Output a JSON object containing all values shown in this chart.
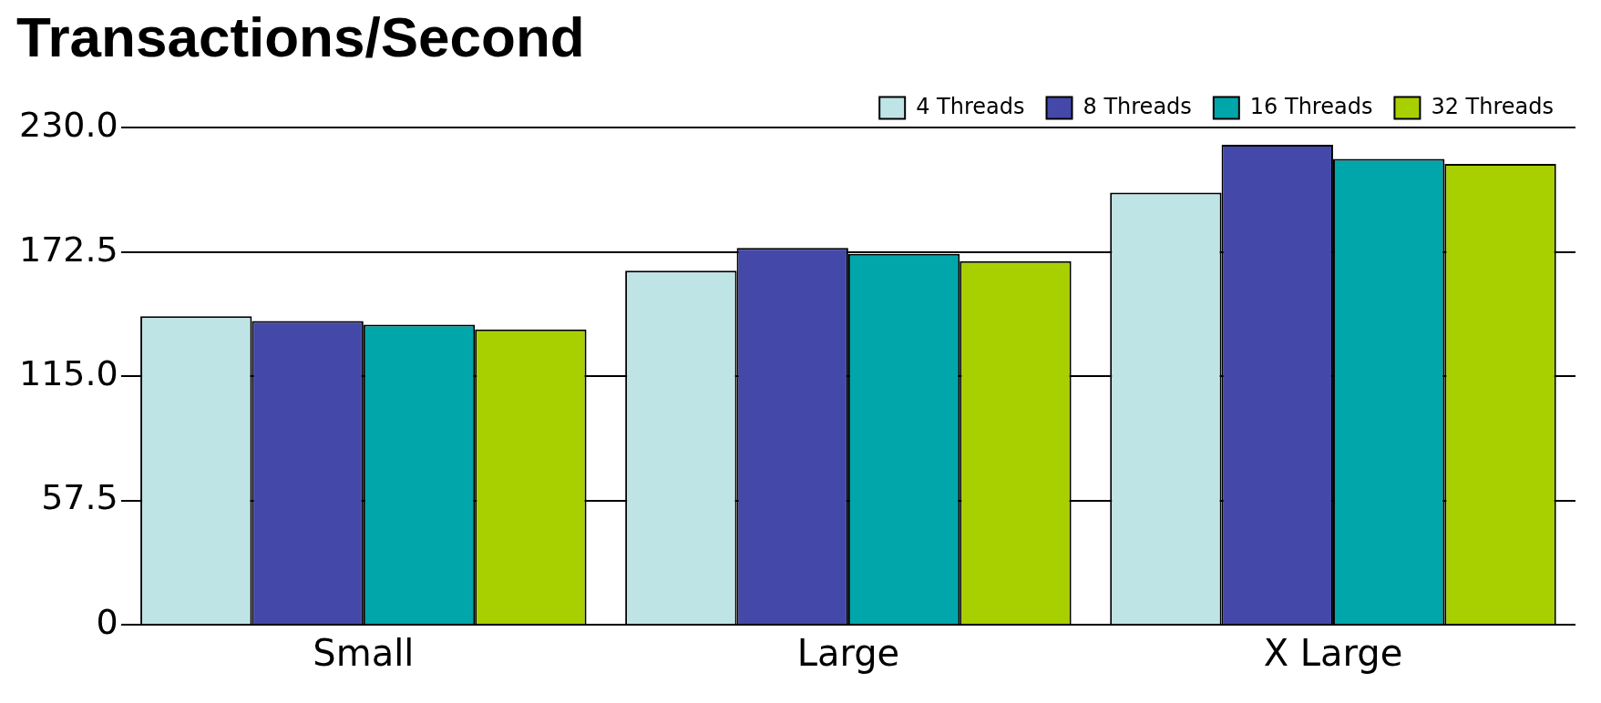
{
  "chart_data": {
    "type": "bar",
    "title": "Transactions/Second",
    "categories": [
      "Small",
      "Large",
      "X Large"
    ],
    "series": [
      {
        "name": "4 Threads",
        "color": "#bfe4e6",
        "values": [
          142.8,
          163.9,
          200.0
        ]
      },
      {
        "name": "8 Threads",
        "color": "#4448a8",
        "values": [
          140.6,
          174.4,
          222.2
        ]
      },
      {
        "name": "16 Threads",
        "color": "#00a6aa",
        "values": [
          138.9,
          171.7,
          215.6
        ]
      },
      {
        "name": "32 Threads",
        "color": "#a8d000",
        "values": [
          136.7,
          168.3,
          213.3
        ]
      }
    ],
    "ylim": [
      0,
      230
    ],
    "yticks": [
      0,
      57.5,
      {
        "value": 115,
        "label": "115.0"
      },
      172.5,
      {
        "value": 230,
        "label": "230.0"
      }
    ],
    "grid": "y",
    "legend": "top right"
  }
}
